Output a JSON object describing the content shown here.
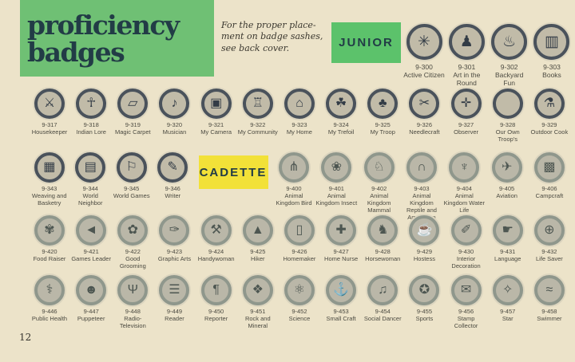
{
  "header": {
    "title_line1": "proficiency",
    "title_line2": "badges",
    "note": "For the proper place-\nment on badge sashes,\nsee back cover."
  },
  "sections": {
    "junior": "JUNIOR",
    "cadette": "CADETTE"
  },
  "footer": {
    "page_number": "12"
  },
  "colors": {
    "background": "#ece3c9",
    "title_green": "#6fc074",
    "junior_green": "#5cc26b",
    "cadette_yellow": "#f2e138",
    "navy_text": "#223c46",
    "junior_ring": "#4a525b",
    "junior_inner": "#c1bba8",
    "cadette_ring": "#8f978c",
    "cadette_inner": "#bab7a8",
    "label_text": "#4b4a41"
  },
  "rows": {
    "row1": [
      {
        "num": "9-300",
        "name": "Active Citizen",
        "icon": "compass-star-icon",
        "glyph": "✳",
        "group": "junior"
      },
      {
        "num": "9-301",
        "name": "Art in the Round",
        "icon": "statue-icon",
        "glyph": "♟",
        "group": "junior"
      },
      {
        "num": "9-302",
        "name": "Backyard Fun",
        "icon": "grill-icon",
        "glyph": "♨",
        "group": "junior"
      },
      {
        "num": "9-303",
        "name": "Books",
        "icon": "books-icon",
        "glyph": "▥",
        "group": "junior"
      }
    ],
    "row2": [
      {
        "num": "9-317",
        "name": "Housekeeper",
        "icon": "crossed-keys-icon",
        "glyph": "⚔",
        "group": "junior"
      },
      {
        "num": "9-318",
        "name": "Indian Lore",
        "icon": "indian-figure-icon",
        "glyph": "☥",
        "group": "junior"
      },
      {
        "num": "9-319",
        "name": "Magic Carpet",
        "icon": "magic-carpet-icon",
        "glyph": "▱",
        "group": "junior"
      },
      {
        "num": "9-320",
        "name": "Musician",
        "icon": "music-note-icon",
        "glyph": "♪",
        "group": "junior"
      },
      {
        "num": "9-321",
        "name": "My Camera",
        "icon": "camera-icon",
        "glyph": "▣",
        "group": "junior"
      },
      {
        "num": "9-322",
        "name": "My Community",
        "icon": "community-building-icon",
        "glyph": "♖",
        "group": "junior"
      },
      {
        "num": "9-323",
        "name": "My Home",
        "icon": "house-icon",
        "glyph": "⌂",
        "group": "junior"
      },
      {
        "num": "9-324",
        "name": "My Trefoil",
        "icon": "trefoil-icon",
        "glyph": "☘",
        "group": "junior"
      },
      {
        "num": "9-325",
        "name": "My Troop",
        "icon": "troop-trefoil-icon",
        "glyph": "♣",
        "group": "junior"
      },
      {
        "num": "9-326",
        "name": "Needlecraft",
        "icon": "pincushion-icon",
        "glyph": "✂",
        "group": "junior"
      },
      {
        "num": "9-327",
        "name": "Observer",
        "icon": "observer-cross-icon",
        "glyph": "✛",
        "group": "junior"
      },
      {
        "num": "9-328",
        "name": "Our Own Troop's",
        "icon": "blank-badge-icon",
        "glyph": "",
        "group": "junior"
      },
      {
        "num": "9-329",
        "name": "Outdoor Cook",
        "icon": "cook-pot-icon",
        "glyph": "⚗",
        "group": "junior"
      }
    ],
    "row3_left": [
      {
        "num": "9-343",
        "name": "Weaving and Basketry",
        "icon": "basket-icon",
        "glyph": "▦",
        "group": "junior"
      },
      {
        "num": "9-344",
        "name": "World Neighbor",
        "icon": "world-building-icon",
        "glyph": "▤",
        "group": "junior"
      },
      {
        "num": "9-345",
        "name": "World Games",
        "icon": "playing-figures-icon",
        "glyph": "⚐",
        "group": "junior"
      },
      {
        "num": "9-346",
        "name": "Writer",
        "icon": "scroll-icon",
        "glyph": "✎",
        "group": "junior"
      }
    ],
    "row3_right": [
      {
        "num": "9-400",
        "name": "Animal Kingdom Bird",
        "icon": "bird-icon",
        "glyph": "⋔",
        "group": "cadette"
      },
      {
        "num": "9-401",
        "name": "Animal Kingdom Insect",
        "icon": "insect-flower-icon",
        "glyph": "❀",
        "group": "cadette"
      },
      {
        "num": "9-402",
        "name": "Animal Kingdom Mammal",
        "icon": "mammal-icon",
        "glyph": "♘",
        "group": "cadette"
      },
      {
        "num": "9-403",
        "name": "Animal Kingdom Reptile and Amphibian",
        "icon": "turtle-icon",
        "glyph": "∩",
        "group": "cadette"
      },
      {
        "num": "9-404",
        "name": "Animal Kingdom Water Life",
        "icon": "shell-icon",
        "glyph": "♆",
        "group": "cadette"
      },
      {
        "num": "9-405",
        "name": "Aviation",
        "icon": "airplane-icon",
        "glyph": "✈",
        "group": "cadette"
      },
      {
        "num": "9-406",
        "name": "Campcraft",
        "icon": "camp-basket-icon",
        "glyph": "▩",
        "group": "cadette"
      }
    ],
    "row4": [
      {
        "num": "9-420",
        "name": "Food Raiser",
        "icon": "food-plate-icon",
        "glyph": "✾",
        "group": "cadette"
      },
      {
        "num": "9-421",
        "name": "Games Leader",
        "icon": "megaphone-icon",
        "glyph": "◄",
        "group": "cadette"
      },
      {
        "num": "9-422",
        "name": "Good Grooming",
        "icon": "grooming-shoe-icon",
        "glyph": "✿",
        "group": "cadette"
      },
      {
        "num": "9-423",
        "name": "Graphic Arts",
        "icon": "ink-roller-icon",
        "glyph": "✑",
        "group": "cadette"
      },
      {
        "num": "9-424",
        "name": "Handywoman",
        "icon": "crossed-tools-icon",
        "glyph": "⚒",
        "group": "cadette"
      },
      {
        "num": "9-425",
        "name": "Hiker",
        "icon": "mountain-tree-icon",
        "glyph": "▲",
        "group": "cadette"
      },
      {
        "num": "9-426",
        "name": "Homemaker",
        "icon": "doorway-icon",
        "glyph": "▯",
        "group": "cadette"
      },
      {
        "num": "9-427",
        "name": "Home Nurse",
        "icon": "nurse-cross-icon",
        "glyph": "✚",
        "group": "cadette"
      },
      {
        "num": "9-428",
        "name": "Horsewoman",
        "icon": "riding-boot-icon",
        "glyph": "♞",
        "group": "cadette"
      },
      {
        "num": "9-429",
        "name": "Hostess",
        "icon": "teapot-icon",
        "glyph": "☕",
        "group": "cadette"
      },
      {
        "num": "9-430",
        "name": "Interior Decoration",
        "icon": "paintbrush-icon",
        "glyph": "✐",
        "group": "cadette"
      },
      {
        "num": "9-431",
        "name": "Language",
        "icon": "signing-hand-icon",
        "glyph": "☛",
        "group": "cadette"
      },
      {
        "num": "9-432",
        "name": "Life Saver",
        "icon": "life-ring-icon",
        "glyph": "⊕",
        "group": "cadette"
      }
    ],
    "row5": [
      {
        "num": "9-446",
        "name": "Public Health",
        "icon": "caduceus-icon",
        "glyph": "⚕",
        "group": "cadette"
      },
      {
        "num": "9-447",
        "name": "Puppeteer",
        "icon": "puppet-head-icon",
        "glyph": "☻",
        "group": "cadette"
      },
      {
        "num": "9-448",
        "name": "Radio-Television",
        "icon": "antenna-tower-icon",
        "glyph": "Ψ",
        "group": "cadette"
      },
      {
        "num": "9-449",
        "name": "Reader",
        "icon": "open-book-icon",
        "glyph": "☰",
        "group": "cadette"
      },
      {
        "num": "9-450",
        "name": "Reporter",
        "icon": "pilcrow-icon",
        "glyph": "¶",
        "group": "cadette"
      },
      {
        "num": "9-451",
        "name": "Rock and Mineral",
        "icon": "rocks-icon",
        "glyph": "❖",
        "group": "cadette"
      },
      {
        "num": "9-452",
        "name": "Science",
        "icon": "atom-icon",
        "glyph": "⚛",
        "group": "cadette"
      },
      {
        "num": "9-453",
        "name": "Small Craft",
        "icon": "anchor-icon",
        "glyph": "⚓",
        "group": "cadette"
      },
      {
        "num": "9-454",
        "name": "Social Dancer",
        "icon": "dancer-icon",
        "glyph": "♫",
        "group": "cadette"
      },
      {
        "num": "9-455",
        "name": "Sports",
        "icon": "sports-gear-icon",
        "glyph": "✪",
        "group": "cadette"
      },
      {
        "num": "9-456",
        "name": "Stamp Collector",
        "icon": "stamp-icon",
        "glyph": "✉",
        "group": "cadette"
      },
      {
        "num": "9-457",
        "name": "Star",
        "icon": "stars-icon",
        "glyph": "✧",
        "group": "cadette"
      },
      {
        "num": "9-458",
        "name": "Swimmer",
        "icon": "wave-icon",
        "glyph": "≈",
        "group": "cadette"
      }
    ]
  }
}
